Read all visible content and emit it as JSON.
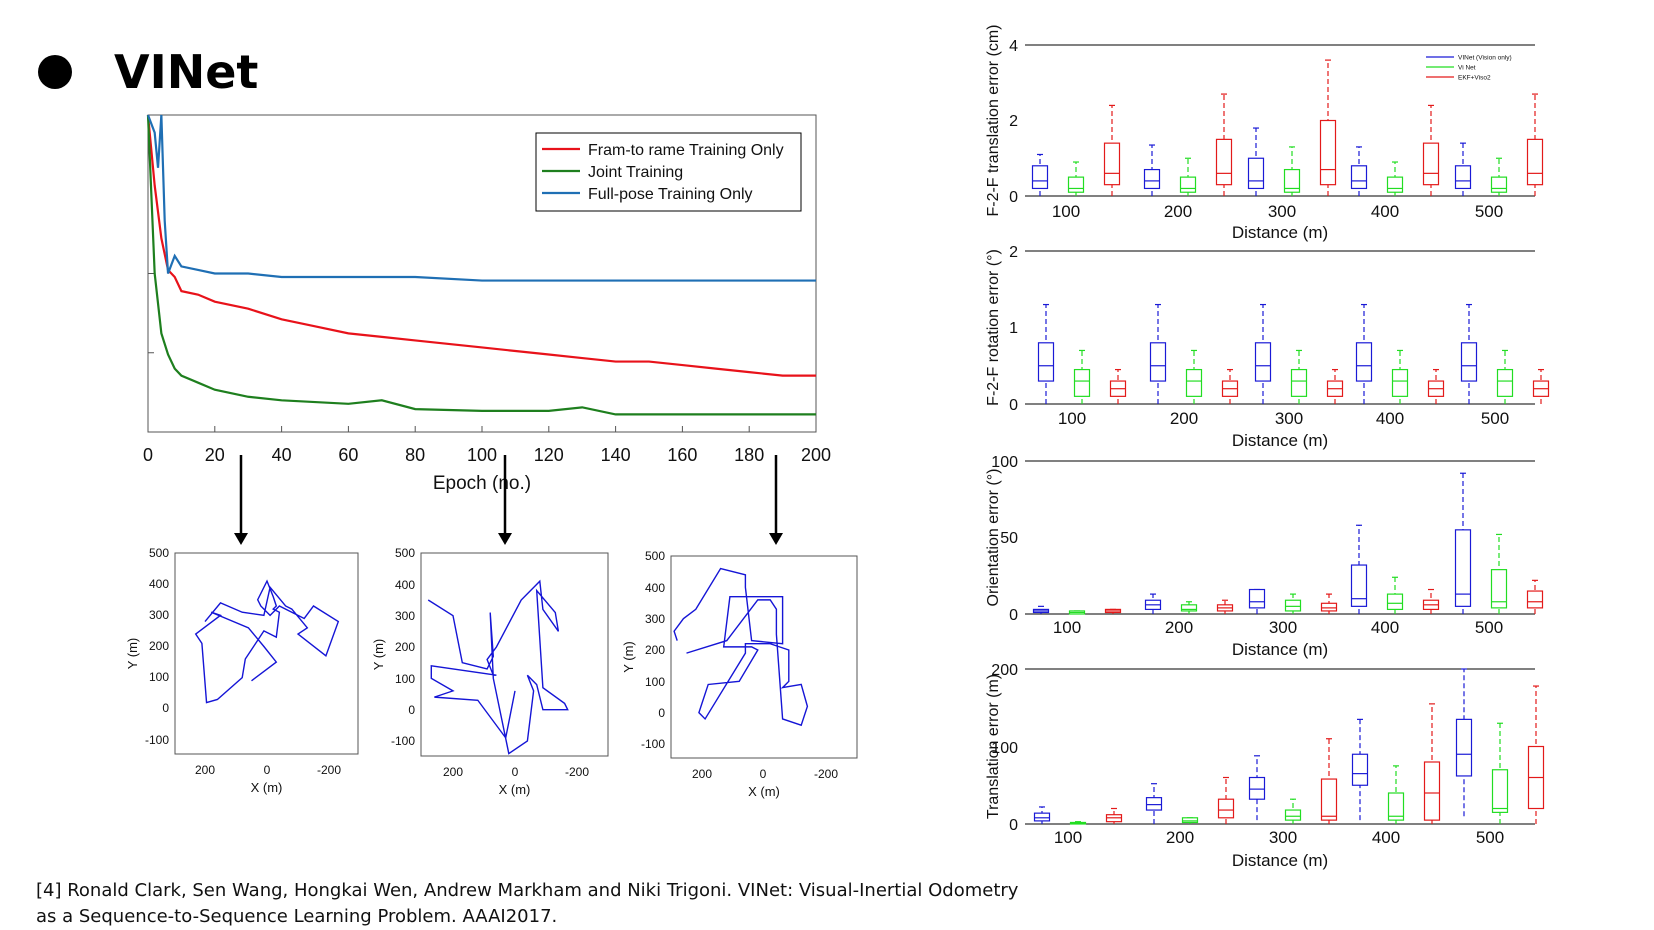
{
  "slide": {
    "title": "VINet",
    "citation": "[4] Ronald Clark, Sen Wang, Hongkai Wen, Andrew Markham and Niki Trigoni. VINet: Visual-Inertial Odometry as a  Sequence-to-Sequence Learning Problem.  AAAI2017."
  },
  "colors": {
    "red": "#e8121a",
    "green": "#1e7f1e",
    "blue": "#1f6fb4",
    "traj": "#1515d6",
    "box_blue": "#1a1ad6",
    "box_green": "#22dd22",
    "box_red": "#e31a1a"
  },
  "chart_data": [
    {
      "type": "line",
      "xlabel": "Epoch (no.)",
      "xlim": [
        0,
        200
      ],
      "xticks": [
        0,
        20,
        40,
        60,
        80,
        100,
        120,
        140,
        160,
        180,
        200
      ],
      "grid": false,
      "legend_position": "top-right",
      "series": [
        {
          "name": "Fram-to rame Training Only",
          "color": "#e8121a",
          "x": [
            0,
            2,
            4,
            6,
            8,
            10,
            15,
            20,
            30,
            40,
            50,
            60,
            70,
            80,
            90,
            100,
            110,
            120,
            130,
            140,
            150,
            160,
            170,
            180,
            190,
            200
          ],
          "y": [
            1.0,
            0.7,
            0.55,
            0.46,
            0.44,
            0.4,
            0.39,
            0.37,
            0.35,
            0.32,
            0.3,
            0.28,
            0.27,
            0.26,
            0.25,
            0.24,
            0.23,
            0.22,
            0.21,
            0.2,
            0.2,
            0.19,
            0.18,
            0.17,
            0.16,
            0.16
          ]
        },
        {
          "name": "Joint Training",
          "color": "#1e7f1e",
          "x": [
            0,
            2,
            4,
            6,
            8,
            10,
            15,
            20,
            30,
            40,
            60,
            70,
            80,
            100,
            120,
            130,
            140,
            160,
            180,
            200
          ],
          "y": [
            1.0,
            0.45,
            0.28,
            0.22,
            0.18,
            0.16,
            0.14,
            0.12,
            0.1,
            0.09,
            0.08,
            0.09,
            0.065,
            0.06,
            0.06,
            0.07,
            0.05,
            0.05,
            0.05,
            0.05
          ]
        },
        {
          "name": "Full-pose Training Only",
          "color": "#1f6fb4",
          "x": [
            0,
            2,
            3,
            4,
            5,
            6,
            8,
            10,
            15,
            20,
            30,
            40,
            60,
            80,
            100,
            120,
            140,
            160,
            180,
            200
          ],
          "y": [
            1.0,
            0.85,
            0.75,
            0.95,
            0.6,
            0.45,
            0.5,
            0.47,
            0.46,
            0.45,
            0.45,
            0.44,
            0.44,
            0.44,
            0.43,
            0.43,
            0.43,
            0.43,
            0.43,
            0.43
          ]
        }
      ]
    },
    {
      "type": "line",
      "xlabel": "X (m)",
      "ylabel": "Y (m)",
      "xlim": [
        300,
        -300
      ],
      "ylim": [
        -150,
        500
      ],
      "xticks": [
        "200",
        "0",
        "-200"
      ],
      "yticks": [
        "500",
        "400",
        "300",
        "200",
        "100",
        "0",
        "-100"
      ],
      "x": [
        200,
        150,
        80,
        10,
        -10,
        -60,
        -80,
        -130,
        -100,
        -190,
        -230,
        -150,
        -120,
        -40,
        -10,
        20,
        30,
        0,
        -20,
        -30,
        -20,
        -40,
        -30,
        10,
        70,
        80,
        160,
        195,
        210,
        230,
        150,
        180,
        60,
        10,
        -30,
        10,
        50
      ],
      "y": [
        280,
        340,
        310,
        300,
        390,
        330,
        320,
        260,
        240,
        170,
        280,
        330,
        290,
        330,
        300,
        330,
        350,
        410,
        360,
        330,
        320,
        310,
        230,
        250,
        160,
        100,
        30,
        20,
        210,
        240,
        300,
        310,
        260,
        200,
        150,
        120,
        90
      ]
    },
    {
      "type": "line",
      "xlabel": "X (m)",
      "ylabel": "Y (m)",
      "xlim": [
        300,
        -300
      ],
      "ylim": [
        -150,
        500
      ],
      "xticks": [
        "200",
        "0",
        "-200"
      ],
      "yticks": [
        "500",
        "400",
        "300",
        "200",
        "100",
        "0",
        "-100"
      ],
      "x": [
        280,
        200,
        170,
        90,
        70,
        80,
        70,
        20,
        -40,
        -60,
        -40,
        -70,
        -90,
        -170,
        -160,
        -90,
        -70,
        -130,
        -140,
        -90,
        -80,
        -60,
        -40,
        -20,
        60,
        90,
        70,
        60,
        270,
        270,
        200,
        260,
        120,
        30,
        0
      ],
      "y": [
        350,
        300,
        150,
        130,
        170,
        310,
        100,
        -140,
        -100,
        60,
        110,
        80,
        0,
        0,
        20,
        70,
        380,
        310,
        250,
        320,
        410,
        390,
        370,
        350,
        200,
        160,
        110,
        110,
        140,
        100,
        60,
        40,
        30,
        -90,
        60
      ]
    },
    {
      "type": "line",
      "xlabel": "X (m)",
      "ylabel": "Y (m)",
      "xlim": [
        300,
        -300
      ],
      "ylim": [
        -150,
        500
      ],
      "xticks": [
        "200",
        "0",
        "-200"
      ],
      "yticks": [
        "500",
        "400",
        "300",
        "200",
        "100",
        "0",
        "-100"
      ],
      "x": [
        280,
        290,
        260,
        220,
        140,
        60,
        60,
        40,
        -60,
        -60,
        -40,
        110,
        130,
        40,
        20,
        80,
        180,
        200,
        210,
        190,
        60,
        60,
        20,
        -20,
        -50,
        -80,
        -80,
        -60,
        -120,
        -140,
        -120,
        -60,
        -40,
        -40,
        -20,
        20,
        120,
        250
      ],
      "y": [
        230,
        260,
        300,
        330,
        460,
        440,
        400,
        230,
        220,
        370,
        370,
        370,
        210,
        210,
        200,
        100,
        90,
        30,
        0,
        -20,
        190,
        220,
        220,
        220,
        210,
        200,
        100,
        80,
        90,
        20,
        -40,
        -20,
        250,
        330,
        360,
        360,
        230,
        190
      ]
    },
    {
      "type": "box",
      "xlabel": "Distance (m)",
      "ylabel": "F-2-F translation error (cm)",
      "categories": [
        "100",
        "200",
        "300",
        "400",
        "500"
      ],
      "ylim": [
        0,
        4
      ],
      "yticks": [
        "4",
        "2",
        "0"
      ],
      "legend_position": "top-right",
      "series": [
        {
          "name": "VINet (Vision only)",
          "color": "#1a1ad6",
          "boxes": [
            [
              0,
              0.2,
              0.4,
              0.8,
              1.1
            ],
            [
              0,
              0.2,
              0.4,
              0.7,
              1.35
            ],
            [
              0,
              0.2,
              0.4,
              1.0,
              1.8
            ],
            [
              0,
              0.2,
              0.4,
              0.8,
              1.3
            ],
            [
              0,
              0.2,
              0.4,
              0.8,
              1.4
            ]
          ]
        },
        {
          "name": "Vi Net",
          "color": "#22dd22",
          "boxes": [
            [
              0,
              0.1,
              0.2,
              0.5,
              0.9
            ],
            [
              0,
              0.1,
              0.2,
              0.5,
              1.0
            ],
            [
              0,
              0.1,
              0.2,
              0.7,
              1.3
            ],
            [
              0,
              0.1,
              0.2,
              0.5,
              0.9
            ],
            [
              0,
              0.1,
              0.2,
              0.5,
              1.0
            ]
          ]
        },
        {
          "name": "EKF+Viso2",
          "color": "#e31a1a",
          "boxes": [
            [
              0,
              0.3,
              0.6,
              1.4,
              2.4
            ],
            [
              0,
              0.3,
              0.6,
              1.5,
              2.7
            ],
            [
              0,
              0.3,
              0.7,
              2.0,
              3.6
            ],
            [
              0,
              0.3,
              0.6,
              1.4,
              2.4
            ],
            [
              0,
              0.3,
              0.6,
              1.5,
              2.7
            ]
          ]
        }
      ]
    },
    {
      "type": "box",
      "xlabel": "Distance (m)",
      "ylabel": "F-2-F rotation error (°)",
      "categories": [
        "100",
        "200",
        "300",
        "400",
        "500"
      ],
      "ylim": [
        0,
        2
      ],
      "yticks": [
        "2",
        "1",
        "0"
      ],
      "series": [
        {
          "color": "#1a1ad6",
          "boxes": [
            [
              0,
              0.3,
              0.5,
              0.8,
              1.3
            ],
            [
              0,
              0.3,
              0.5,
              0.8,
              1.3
            ],
            [
              0,
              0.3,
              0.5,
              0.8,
              1.3
            ],
            [
              0,
              0.3,
              0.5,
              0.8,
              1.3
            ],
            [
              0,
              0.3,
              0.5,
              0.8,
              1.3
            ]
          ]
        },
        {
          "color": "#22dd22",
          "boxes": [
            [
              0,
              0.1,
              0.3,
              0.45,
              0.7
            ],
            [
              0,
              0.1,
              0.3,
              0.45,
              0.7
            ],
            [
              0,
              0.1,
              0.3,
              0.45,
              0.7
            ],
            [
              0,
              0.1,
              0.3,
              0.45,
              0.7
            ],
            [
              0,
              0.1,
              0.3,
              0.45,
              0.7
            ]
          ]
        },
        {
          "color": "#e31a1a",
          "boxes": [
            [
              0,
              0.1,
              0.2,
              0.3,
              0.45
            ],
            [
              0,
              0.1,
              0.2,
              0.3,
              0.45
            ],
            [
              0,
              0.1,
              0.2,
              0.3,
              0.45
            ],
            [
              0,
              0.1,
              0.2,
              0.3,
              0.45
            ],
            [
              0,
              0.1,
              0.2,
              0.3,
              0.45
            ]
          ]
        }
      ]
    },
    {
      "type": "box",
      "xlabel": "Distance (m)",
      "ylabel": "Orientation error (°)",
      "categories": [
        "100",
        "200",
        "300",
        "400",
        "500"
      ],
      "ylim": [
        0,
        100
      ],
      "yticks": [
        "100",
        "50",
        "0"
      ],
      "series": [
        {
          "color": "#1a1ad6",
          "boxes": [
            [
              0,
              1,
              2,
              3,
              5
            ],
            [
              0,
              3,
              6,
              9,
              13
            ],
            [
              0,
              4,
              8,
              16,
              16
            ],
            [
              0,
              5,
              10,
              32,
              58
            ],
            [
              0,
              5,
              13,
              55,
              92
            ]
          ]
        },
        {
          "color": "#22dd22",
          "boxes": [
            [
              0,
              0,
              1,
              2,
              2
            ],
            [
              0,
              2,
              3,
              6,
              8
            ],
            [
              0,
              2,
              5,
              9,
              13
            ],
            [
              0,
              3,
              7,
              13,
              24
            ],
            [
              0,
              4,
              8,
              29,
              52
            ]
          ]
        },
        {
          "color": "#e31a1a",
          "boxes": [
            [
              0,
              1,
              2,
              3,
              3
            ],
            [
              0,
              2,
              4,
              6,
              9
            ],
            [
              0,
              2,
              4,
              7,
              13
            ],
            [
              0,
              3,
              6,
              9,
              16
            ],
            [
              0,
              4,
              8,
              15,
              22
            ]
          ]
        }
      ]
    },
    {
      "type": "box",
      "xlabel": "Distance (m)",
      "ylabel": "Translation error (m)",
      "categories": [
        "100",
        "200",
        "300",
        "400",
        "500"
      ],
      "ylim": [
        0,
        200
      ],
      "yticks": [
        "200",
        "100",
        "0"
      ],
      "series": [
        {
          "color": "#1a1ad6",
          "boxes": [
            [
              0,
              4,
              8,
              14,
              22
            ],
            [
              0,
              18,
              25,
              34,
              52
            ],
            [
              5,
              32,
              45,
              60,
              88
            ],
            [
              5,
              50,
              65,
              90,
              135
            ],
            [
              10,
              62,
              90,
              135,
              200
            ]
          ]
        },
        {
          "color": "#22dd22",
          "boxes": [
            [
              0,
              0,
              1,
              2,
              3
            ],
            [
              0,
              2,
              4,
              8,
              8
            ],
            [
              0,
              5,
              10,
              18,
              32
            ],
            [
              0,
              5,
              10,
              40,
              75
            ],
            [
              0,
              15,
              20,
              70,
              130
            ]
          ]
        },
        {
          "color": "#e31a1a",
          "boxes": [
            [
              0,
              3,
              8,
              12,
              20
            ],
            [
              0,
              8,
              18,
              32,
              60
            ],
            [
              0,
              5,
              10,
              58,
              110
            ],
            [
              0,
              5,
              40,
              80,
              155
            ],
            [
              0,
              20,
              60,
              100,
              178
            ]
          ]
        }
      ]
    }
  ]
}
